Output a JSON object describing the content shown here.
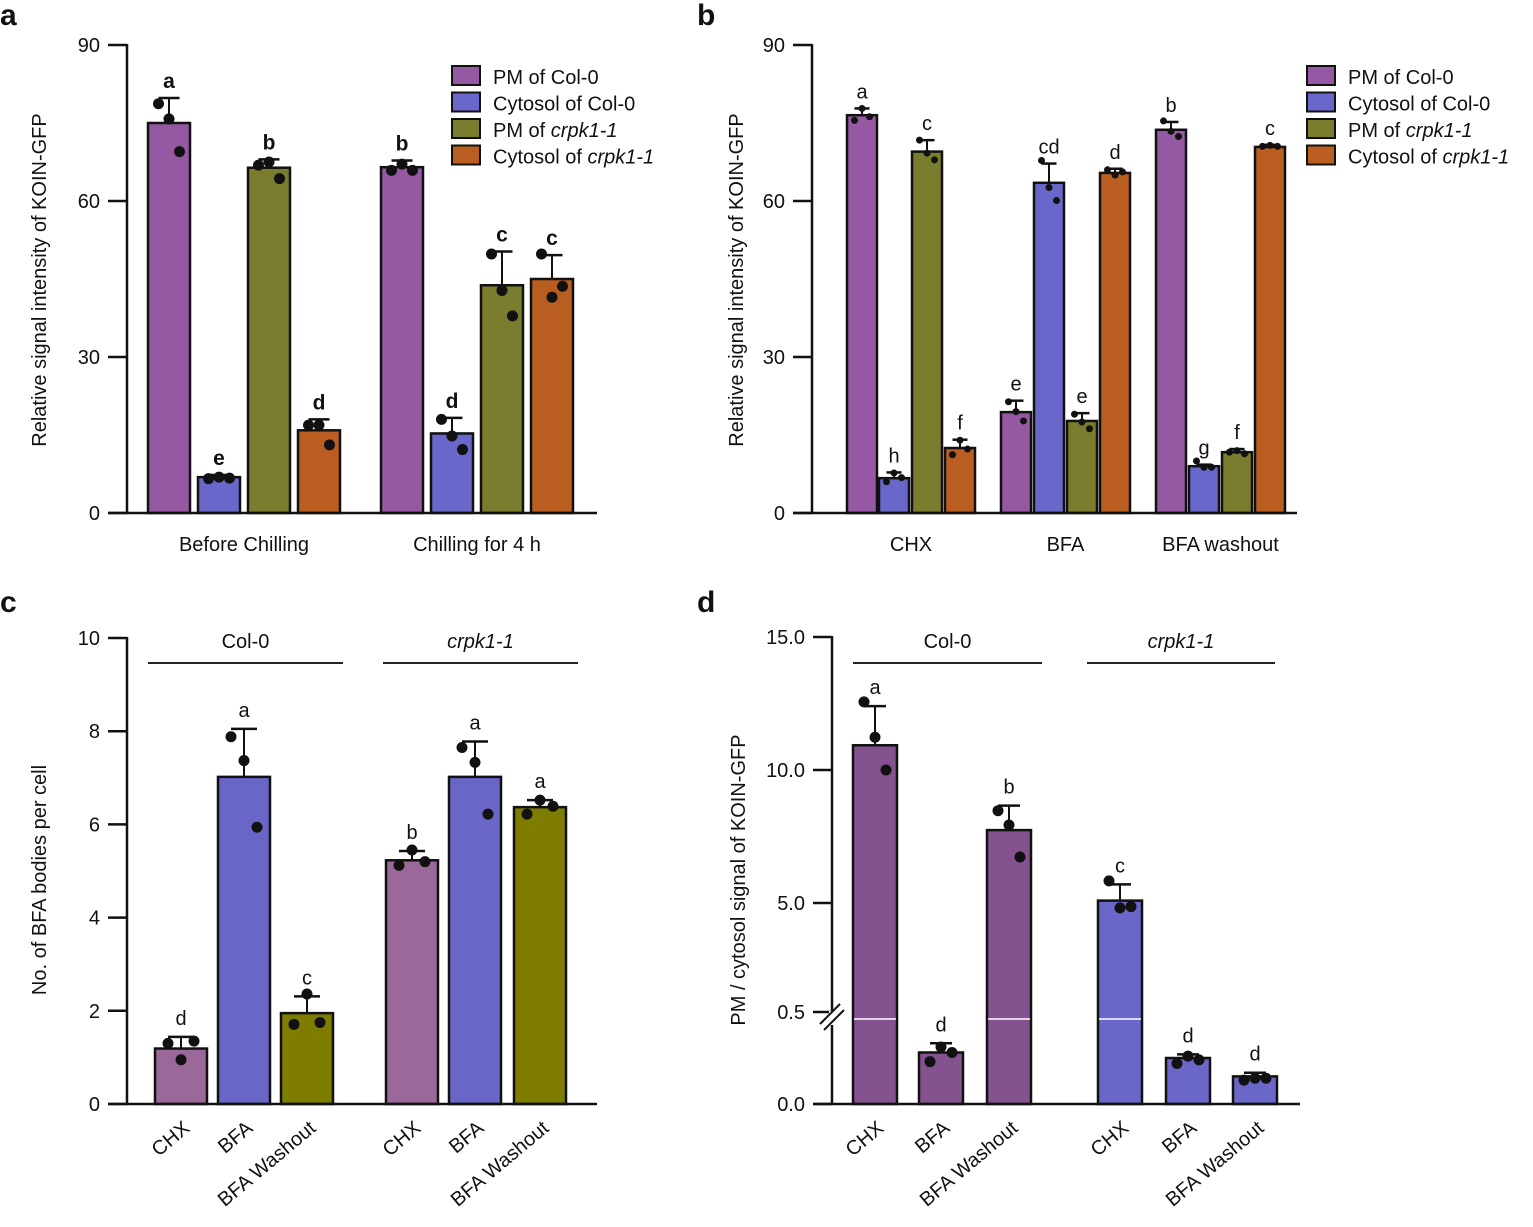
{
  "chart_data": [
    {
      "panel": "a",
      "type": "bar",
      "ylabel": "Relative signal intensity of KOIN-GFP",
      "ylim": [
        0,
        90
      ],
      "yticks": [
        "0",
        "30",
        "60",
        "90"
      ],
      "categories": [
        "Before Chilling",
        "Chilling for 4 h"
      ],
      "legend_position": "top-right",
      "series": [
        {
          "name": "PM of Col-0",
          "color": "#9558a2",
          "values": [
            75.0,
            66.5
          ],
          "sd": [
            4.8,
            1.3
          ],
          "points": [
            [
              78.7,
              75.8,
              69.5
            ],
            [
              65.9,
              67.1,
              65.9
            ]
          ],
          "letters": [
            "a",
            "b"
          ]
        },
        {
          "name": "Cytosol of Col-0",
          "color": "#6a67cb",
          "values": [
            6.9,
            15.3
          ],
          "sd": [
            0.4,
            3.0
          ],
          "points": [
            [
              6.6,
              6.9,
              6.7
            ],
            [
              18.0,
              14.8,
              12.2
            ]
          ],
          "letters": [
            "e",
            "d"
          ]
        },
        {
          "name": "PM of crpk1-1",
          "color": "#7a7c2e",
          "values": [
            66.4,
            43.8
          ],
          "sd": [
            1.6,
            6.5
          ],
          "points": [
            [
              66.9,
              67.5,
              64.3
            ],
            [
              49.8,
              42.8,
              37.9
            ]
          ],
          "letters": [
            "b",
            "c"
          ]
        },
        {
          "name": "Cytosol of crpk1-1",
          "color": "#b95e20",
          "values": [
            15.9,
            45.0
          ],
          "sd": [
            2.1,
            4.6
          ],
          "points": [
            [
              16.9,
              16.9,
              13.1
            ],
            [
              49.8,
              41.5,
              43.6
            ]
          ],
          "letters": [
            "d",
            "c"
          ]
        }
      ]
    },
    {
      "panel": "b",
      "type": "bar",
      "ylabel": "Relative signal intensity of KOIN-GFP",
      "ylim": [
        0,
        90
      ],
      "yticks": [
        "0",
        "30",
        "60",
        "90"
      ],
      "categories": [
        "CHX",
        "BFA",
        "BFA washout"
      ],
      "legend_position": "top-right",
      "series": [
        {
          "name": "PM of Col-0",
          "color": "#9558a2",
          "values": [
            76.5,
            19.4,
            73.7
          ],
          "sd": [
            1.3,
            2.2,
            1.5
          ],
          "points": [
            [
              75.5,
              77.8,
              76.2
            ],
            [
              21.4,
              19.5,
              17.7
            ],
            [
              75.4,
              73.4,
              72.4
            ]
          ],
          "letters": [
            "a",
            "e",
            "b"
          ]
        },
        {
          "name": "Cytosol of Col-0",
          "color": "#6a67cb",
          "values": [
            6.7,
            63.5,
            9.0
          ],
          "sd": [
            1.1,
            3.7,
            0.3
          ],
          "points": [
            [
              6.0,
              7.7,
              6.8
            ],
            [
              67.8,
              62.6,
              60.1
            ],
            [
              10.0,
              8.8,
              8.8
            ]
          ],
          "letters": [
            "h",
            "cd",
            "g"
          ]
        },
        {
          "name": "PM of crpk1-1",
          "color": "#7a7c2e",
          "values": [
            69.5,
            17.7,
            11.7
          ],
          "sd": [
            2.2,
            1.5,
            0.6
          ],
          "points": [
            [
              71.7,
              69.2,
              67.9
            ],
            [
              19.0,
              17.5,
              16.2
            ],
            [
              11.7,
              12.0,
              11.4
            ]
          ],
          "letters": [
            "c",
            "e",
            "f"
          ]
        },
        {
          "name": "Cytosol of crpk1-1",
          "color": "#b95e20",
          "values": [
            12.5,
            65.4,
            70.4
          ],
          "sd": [
            1.6,
            0.8,
            0.4
          ],
          "points": [
            [
              11.2,
              14.0,
              12.3
            ],
            [
              66.0,
              65.0,
              65.6
            ],
            [
              70.5,
              70.7,
              70.5
            ]
          ],
          "letters": [
            "f",
            "d",
            "c"
          ]
        }
      ]
    },
    {
      "panel": "c",
      "type": "bar",
      "ylabel": "No. of BFA bodies per cell",
      "ylim": [
        0,
        10
      ],
      "yticks": [
        "0",
        "2",
        "4",
        "6",
        "8",
        "10"
      ],
      "groups": [
        {
          "label": "Col-0",
          "bars": [
            {
              "label": "CHX",
              "value": 1.19,
              "sd": 0.25,
              "points": [
                1.3,
                0.95,
                1.35
              ],
              "letter": "d",
              "color": "#9a6899"
            },
            {
              "label": "BFA",
              "value": 7.02,
              "sd": 1.03,
              "points": [
                7.88,
                7.37,
                5.94
              ],
              "letter": "a",
              "color": "#6966c8"
            },
            {
              "label": "BFA Washout",
              "value": 1.95,
              "sd": 0.36,
              "points": [
                1.71,
                2.36,
                1.75
              ],
              "letter": "c",
              "color": "#7e7d00"
            }
          ]
        },
        {
          "label": "crpk1-1",
          "bars": [
            {
              "label": "CHX",
              "value": 5.23,
              "sd": 0.2,
              "points": [
                5.12,
                5.45,
                5.2
              ],
              "letter": "b",
              "color": "#9a6899"
            },
            {
              "label": "BFA",
              "value": 7.02,
              "sd": 0.76,
              "points": [
                7.65,
                7.33,
                6.22
              ],
              "letter": "a",
              "color": "#6966c8"
            },
            {
              "label": "BFA Washout",
              "value": 6.37,
              "sd": 0.15,
              "points": [
                6.22,
                6.52,
                6.39
              ],
              "letter": "a",
              "color": "#7e7d00"
            }
          ]
        }
      ]
    },
    {
      "panel": "d",
      "type": "bar",
      "ylabel": "PM / cytosol signal of KOIN-GFP",
      "ylim": [
        0,
        15
      ],
      "axis_break": [
        0.5,
        5.0
      ],
      "yticks": [
        "0.0",
        "0.5",
        "5.0",
        "10.0",
        "15.0"
      ],
      "groups": [
        {
          "label": "Col-0",
          "bars": [
            {
              "label": "CHX",
              "value": 10.93,
              "sd": 1.47,
              "points": [
                12.56,
                11.23,
                10.0
              ],
              "letter": "a",
              "color": "#84538f"
            },
            {
              "label": "BFA",
              "value": 0.28,
              "sd": 0.05,
              "points": [
                0.23,
                0.31,
                0.28
              ],
              "letter": "d",
              "color": "#84538f"
            },
            {
              "label": "BFA Washout",
              "value": 7.74,
              "sd": 0.92,
              "points": [
                8.47,
                7.93,
                6.73
              ],
              "letter": "b",
              "color": "#84538f"
            }
          ]
        },
        {
          "label": "crpk1-1",
          "bars": [
            {
              "label": "CHX",
              "value": 5.09,
              "sd": 0.61,
              "points": [
                5.83,
                4.8,
                4.85
              ],
              "letter": "c",
              "color": "#6a67c8"
            },
            {
              "label": "BFA",
              "value": 0.25,
              "sd": 0.02,
              "points": [
                0.22,
                0.26,
                0.24
              ],
              "letter": "d",
              "color": "#6a67c8"
            },
            {
              "label": "BFA Washout",
              "value": 0.15,
              "sd": 0.02,
              "points": [
                0.13,
                0.14,
                0.14
              ],
              "letter": "d",
              "color": "#6a67c8"
            }
          ]
        }
      ]
    }
  ]
}
